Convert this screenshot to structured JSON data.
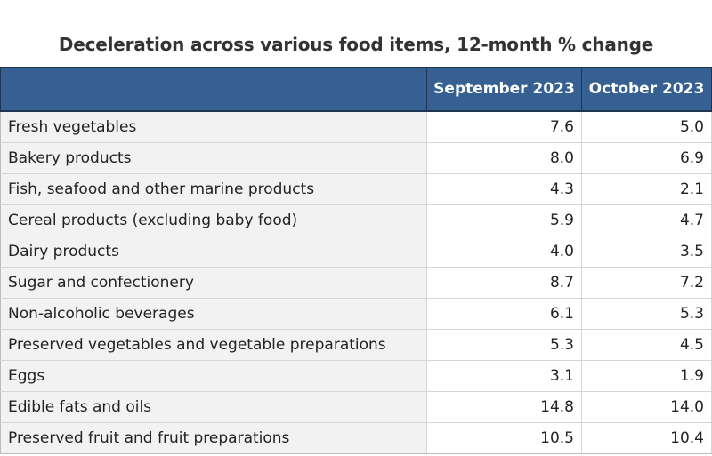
{
  "chart_data": {
    "type": "table",
    "title": "Deceleration across various food items, 12-month % change",
    "columns": [
      "",
      "September 2023",
      "October 2023"
    ],
    "rows": [
      {
        "label": "Fresh vegetables",
        "values": [
          "7.6",
          "5.0"
        ]
      },
      {
        "label": "Bakery products",
        "values": [
          "8.0",
          "6.9"
        ]
      },
      {
        "label": "Fish, seafood and other marine products",
        "values": [
          "4.3",
          "2.1"
        ]
      },
      {
        "label": "Cereal products (excluding baby food)",
        "values": [
          "5.9",
          "4.7"
        ]
      },
      {
        "label": "Dairy products",
        "values": [
          "4.0",
          "3.5"
        ]
      },
      {
        "label": "Sugar and confectionery",
        "values": [
          "8.7",
          "7.2"
        ]
      },
      {
        "label": "Non-alcoholic beverages",
        "values": [
          "6.1",
          "5.3"
        ]
      },
      {
        "label": "Preserved vegetables and vegetable preparations",
        "values": [
          "5.3",
          "4.5"
        ]
      },
      {
        "label": "Eggs",
        "values": [
          "3.1",
          "1.9"
        ]
      },
      {
        "label": "Edible fats and oils",
        "values": [
          "14.8",
          "14.0"
        ]
      },
      {
        "label": "Preserved fruit and fruit preparations",
        "values": [
          "10.5",
          "10.4"
        ]
      }
    ],
    "colors": {
      "header_bg": "#366092",
      "header_text": "#ffffff",
      "label_bg": "#f2f2f2"
    }
  }
}
